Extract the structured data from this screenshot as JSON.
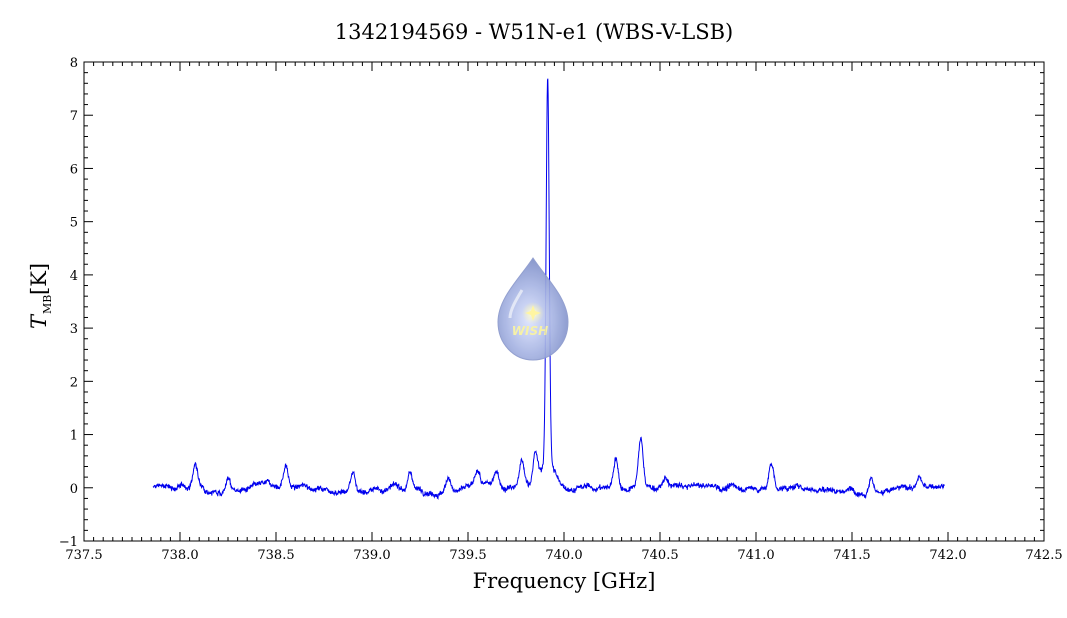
{
  "chart_data": {
    "type": "line",
    "title": "1342194569 - W51N-e1 (WBS-V-LSB)",
    "xlabel": "Frequency [GHz]",
    "ylabel_main": "T",
    "ylabel_sub": "MB",
    "ylabel_unit": "[K]",
    "xlim": [
      737.5,
      742.5
    ],
    "ylim": [
      -1,
      8
    ],
    "x_ticks": [
      "737.5",
      "738.0",
      "738.5",
      "739.0",
      "739.5",
      "740.0",
      "740.5",
      "741.0",
      "741.5",
      "742.0",
      "742.5"
    ],
    "y_ticks": [
      "−1",
      "0",
      "1",
      "2",
      "3",
      "4",
      "5",
      "6",
      "7",
      "8"
    ],
    "grid": false,
    "series": [
      {
        "color": "#0000ee",
        "x_start": 737.86,
        "x_end": 741.98,
        "baseline_noise": 0.08,
        "features": [
          {
            "x": 737.9,
            "y": 0.05
          },
          {
            "x": 738.08,
            "y": 0.45
          },
          {
            "x": 738.25,
            "y": 0.25
          },
          {
            "x": 738.55,
            "y": 0.42
          },
          {
            "x": 738.9,
            "y": 0.35
          },
          {
            "x": 739.2,
            "y": 0.3
          },
          {
            "x": 739.4,
            "y": 0.25
          },
          {
            "x": 739.55,
            "y": 0.3
          },
          {
            "x": 739.65,
            "y": 0.3
          },
          {
            "x": 739.78,
            "y": 0.45
          },
          {
            "x": 739.85,
            "y": 0.6
          },
          {
            "x": 739.915,
            "y": 7.25
          },
          {
            "x": 740.27,
            "y": 0.55
          },
          {
            "x": 740.4,
            "y": 0.88
          },
          {
            "x": 740.53,
            "y": 0.15
          },
          {
            "x": 741.08,
            "y": 0.45
          },
          {
            "x": 741.6,
            "y": 0.3
          },
          {
            "x": 741.85,
            "y": 0.2
          }
        ]
      }
    ]
  },
  "logo": {
    "text": "WISH",
    "fill_color": "#9fb0dc",
    "star_color": "#fff59a"
  }
}
